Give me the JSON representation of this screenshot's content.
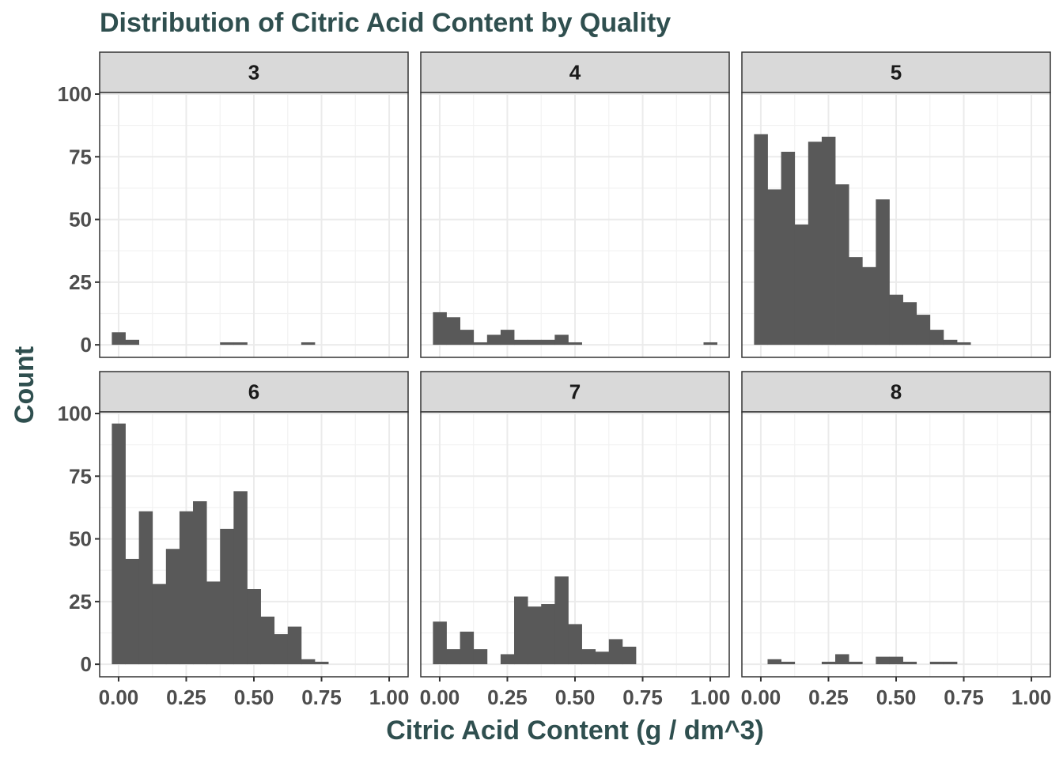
{
  "chart_data": {
    "type": "bar",
    "title": "Distribution of Citric Acid Content by Quality",
    "xlabel": "Citric Acid Content (g / dm^3)",
    "ylabel": "Count",
    "xlim": [
      -0.07,
      1.07
    ],
    "ylim": [
      -5,
      100
    ],
    "x_ticks": [
      0.0,
      0.25,
      0.5,
      0.75,
      1.0
    ],
    "x_tick_labels": [
      "0.00",
      "0.25",
      "0.50",
      "0.75",
      "1.00"
    ],
    "y_ticks": [
      0,
      25,
      50,
      75,
      100
    ],
    "y_tick_labels": [
      "0",
      "25",
      "50",
      "75",
      "100"
    ],
    "grid": true,
    "bin_width": 0.05,
    "bin_centers": [
      0.0,
      0.05,
      0.1,
      0.15,
      0.2,
      0.25,
      0.3,
      0.35,
      0.4,
      0.45,
      0.5,
      0.55,
      0.6,
      0.65,
      0.7,
      0.75,
      0.8,
      0.85,
      0.9,
      0.95,
      1.0
    ],
    "facets": [
      {
        "label": "3",
        "counts": [
          5,
          2,
          0,
          0,
          0,
          0,
          0,
          0,
          1,
          1,
          0,
          0,
          0,
          0,
          1,
          0,
          0,
          0,
          0,
          0,
          0
        ]
      },
      {
        "label": "4",
        "counts": [
          13,
          11,
          6,
          1,
          4,
          6,
          2,
          2,
          2,
          4,
          1,
          0,
          0,
          0,
          0,
          0,
          0,
          0,
          0,
          0,
          1
        ]
      },
      {
        "label": "5",
        "counts": [
          84,
          62,
          77,
          48,
          81,
          83,
          64,
          35,
          31,
          58,
          20,
          17,
          12,
          6,
          2,
          1,
          0,
          0,
          0,
          0,
          0
        ]
      },
      {
        "label": "6",
        "counts": [
          96,
          42,
          61,
          32,
          46,
          61,
          65,
          33,
          54,
          69,
          30,
          19,
          12,
          15,
          2,
          1,
          0,
          0,
          0,
          0,
          0
        ]
      },
      {
        "label": "7",
        "counts": [
          17,
          6,
          13,
          6,
          0,
          4,
          27,
          23,
          24,
          35,
          16,
          6,
          5,
          10,
          7,
          0,
          0,
          0,
          0,
          0,
          0
        ]
      },
      {
        "label": "8",
        "counts": [
          0,
          2,
          1,
          0,
          0,
          1,
          4,
          1,
          0,
          3,
          3,
          1,
          0,
          1,
          1,
          0,
          0,
          0,
          0,
          0,
          0
        ]
      }
    ],
    "colors": {
      "bar": "#595959",
      "title": "#2f4f4f",
      "strip": "#d9d9d9"
    }
  }
}
